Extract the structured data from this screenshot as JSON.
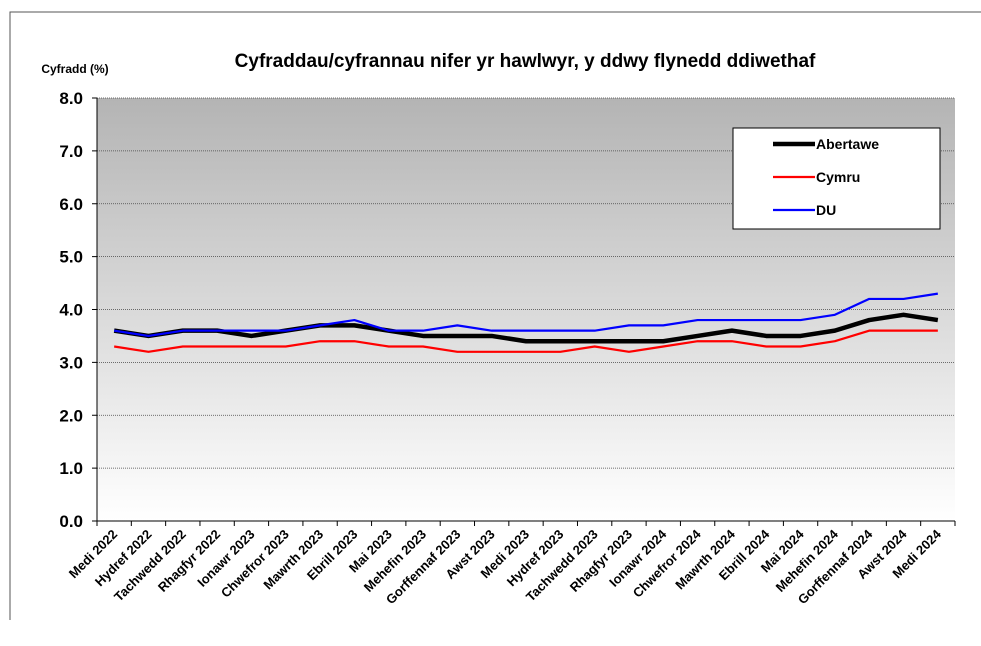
{
  "chart_data": {
    "type": "line",
    "title": "Cyfraddau/cyfrannau nifer yr hawlwyr, y ddwy flynedd ddiwethaf",
    "y_axis_label": "Cyfradd (%)",
    "categories": [
      "Medi 2022",
      "Hydref 2022",
      "Tachwedd 2022",
      "Rhagfyr 2022",
      "Ionawr 2023",
      "Chwefror 2023",
      "Mawrth 2023",
      "Ebrill 2023",
      "Mai 2023",
      "Mehefin 2023",
      "Gorffennaf 2023",
      "Awst 2023",
      "Medi 2023",
      "Hydref 2023",
      "Tachwedd 2023",
      "Rhagfyr 2023",
      "Ionawr 2024",
      "Chwefror 2024",
      "Mawrth 2024",
      "Ebrill 2024",
      "Mai 2024",
      "Mehefin 2024",
      "Gorffennaf 2024",
      "Awst 2024",
      "Medi 2024"
    ],
    "series": [
      {
        "name": "Abertawe",
        "color": "#000000",
        "values": [
          3.6,
          3.5,
          3.6,
          3.6,
          3.5,
          3.6,
          3.7,
          3.7,
          3.6,
          3.5,
          3.5,
          3.5,
          3.4,
          3.4,
          3.4,
          3.4,
          3.4,
          3.5,
          3.6,
          3.5,
          3.5,
          3.6,
          3.8,
          3.9,
          3.8
        ]
      },
      {
        "name": "Cymru",
        "color": "#ff0000",
        "values": [
          3.3,
          3.2,
          3.3,
          3.3,
          3.3,
          3.3,
          3.4,
          3.4,
          3.3,
          3.3,
          3.2,
          3.2,
          3.2,
          3.2,
          3.3,
          3.2,
          3.3,
          3.4,
          3.4,
          3.3,
          3.3,
          3.4,
          3.6,
          3.6,
          3.6
        ]
      },
      {
        "name": "DU",
        "color": "#0000ff",
        "values": [
          3.6,
          3.5,
          3.6,
          3.6,
          3.6,
          3.6,
          3.7,
          3.8,
          3.6,
          3.6,
          3.7,
          3.6,
          3.6,
          3.6,
          3.6,
          3.7,
          3.7,
          3.8,
          3.8,
          3.8,
          3.8,
          3.9,
          4.2,
          4.2,
          4.3
        ]
      }
    ],
    "ylim": [
      0,
      8
    ],
    "yticks": [
      {
        "value": 0,
        "label": "0.0"
      },
      {
        "value": 1,
        "label": "1.0"
      },
      {
        "value": 2,
        "label": "2.0"
      },
      {
        "value": 3,
        "label": "3.0"
      },
      {
        "value": 4,
        "label": "4.0"
      },
      {
        "value": 5,
        "label": "5.0"
      },
      {
        "value": 6,
        "label": "6.0"
      },
      {
        "value": 7,
        "label": "7.0"
      },
      {
        "value": 8,
        "label": "8.0"
      }
    ],
    "grid": true,
    "legend_position": "upper right"
  }
}
